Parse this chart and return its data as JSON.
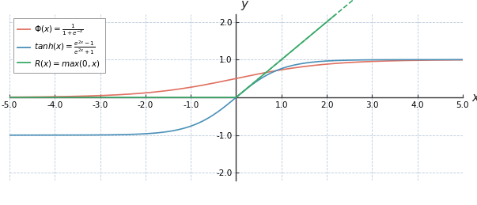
{
  "xlim": [
    -5.0,
    5.0
  ],
  "ylim": [
    -2.2,
    2.2
  ],
  "ylim_display": [
    -2.0,
    2.0
  ],
  "xticks": [
    -5.0,
    -4.0,
    -3.0,
    -2.0,
    -1.0,
    1.0,
    2.0,
    3.0,
    4.0,
    5.0
  ],
  "yticks": [
    -2.0,
    -1.0,
    1.0,
    2.0
  ],
  "sigmoid_color": "#e07060",
  "tanh_color": "#4a90b8",
  "relu_color": "#3aaa6a",
  "background_color": "#ffffff",
  "grid_color": "#b0c4d8",
  "legend_labels": [
    "$\\Phi(x) = \\frac{1}{1+e^{-x}}$",
    "$tanh(x) = \\frac{e^{2x}-1}{e^{2x}+1}$",
    "$R(x) = max(0,x)$"
  ],
  "xlabel": "x",
  "ylabel": "y",
  "figwidth": 6.03,
  "figheight": 2.59,
  "dpi": 100
}
